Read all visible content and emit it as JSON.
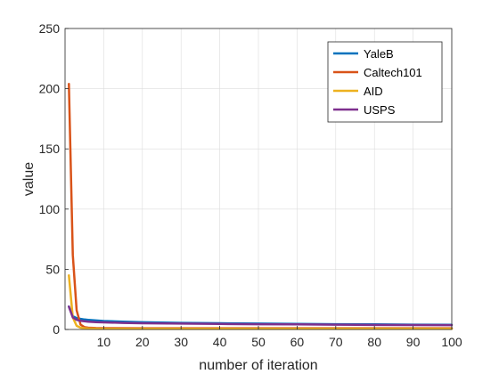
{
  "chart_data": {
    "type": "line",
    "title": "",
    "xlabel": "number of iteration",
    "ylabel": "value",
    "xlim": [
      0,
      100
    ],
    "ylim": [
      0,
      250
    ],
    "xticks": [
      10,
      20,
      30,
      40,
      50,
      60,
      70,
      80,
      90,
      100
    ],
    "yticks": [
      0,
      50,
      100,
      150,
      200,
      250
    ],
    "grid": true,
    "legend_position": "top-right",
    "series": [
      {
        "name": "YaleB",
        "color": "#0072BD",
        "x": [
          1,
          2,
          3,
          4,
          5,
          6,
          8,
          10,
          15,
          20,
          30,
          40,
          50,
          60,
          70,
          80,
          90,
          100
        ],
        "y": [
          19,
          11,
          9.5,
          8.8,
          8.3,
          8,
          7.5,
          7,
          6.5,
          6,
          5.5,
          5.2,
          4.9,
          4.6,
          4.4,
          4.2,
          4,
          3.9
        ]
      },
      {
        "name": "Caltech101",
        "color": "#D95319",
        "x": [
          1,
          2,
          3,
          4,
          5,
          6,
          8,
          10,
          20,
          50,
          100
        ],
        "y": [
          204,
          62,
          16,
          4,
          2,
          1.5,
          1.2,
          1.1,
          1,
          1,
          1
        ]
      },
      {
        "name": "AID",
        "color": "#EDB120",
        "x": [
          1,
          2,
          3,
          4,
          5,
          6,
          8,
          10,
          20,
          50,
          100
        ],
        "y": [
          45,
          10,
          3,
          1.5,
          1,
          0.8,
          0.7,
          0.6,
          0.5,
          0.5,
          0.5
        ]
      },
      {
        "name": "USPS",
        "color": "#7E2F8E",
        "x": [
          1,
          2,
          3,
          4,
          5,
          6,
          8,
          10,
          15,
          20,
          30,
          40,
          50,
          60,
          70,
          80,
          90,
          100
        ],
        "y": [
          19,
          10,
          8,
          7.2,
          6.8,
          6.5,
          6.1,
          5.9,
          5.5,
          5.2,
          4.9,
          4.6,
          4.4,
          4.2,
          4,
          3.8,
          3.7,
          3.6
        ]
      }
    ]
  }
}
